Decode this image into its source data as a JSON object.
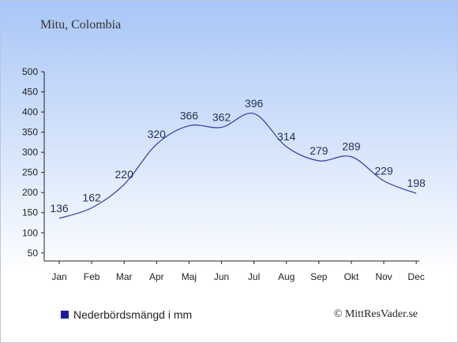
{
  "location_title": "Mitu, Colombia",
  "legend_label": "Nederbördsmängd i mm",
  "credit": "© MittResVader.se",
  "colors": {
    "line": "#2a3f9e",
    "legend": "#1a1aa8",
    "axis": "#222222",
    "label": "#1f2f5a"
  },
  "chart_data": {
    "type": "line",
    "categories": [
      "Jan",
      "Feb",
      "Mar",
      "Apr",
      "Maj",
      "Jun",
      "Jul",
      "Aug",
      "Sep",
      "Okt",
      "Nov",
      "Dec"
    ],
    "series": [
      {
        "name": "Nederbördsmängd i mm",
        "values": [
          136,
          162,
          220,
          320,
          366,
          362,
          396,
          314,
          279,
          289,
          229,
          198
        ]
      }
    ],
    "yticks": [
      50,
      100,
      150,
      200,
      250,
      300,
      350,
      400,
      450,
      500
    ],
    "ylim": [
      30,
      500
    ],
    "grid": false,
    "legend": "bottom-left"
  }
}
